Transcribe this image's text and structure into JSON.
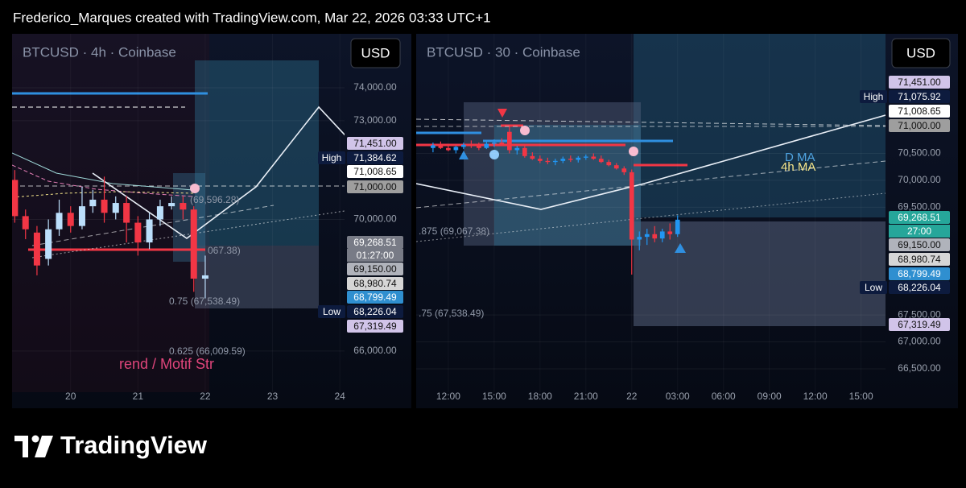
{
  "header": {
    "caption": "Frederico_Marques created with TradingView.com, Mar 22, 2026 03:33 UTC+1"
  },
  "chart_data": [
    {
      "type": "candlestick",
      "title": "BTCUSD · 4h · Coinbase",
      "currency": "USD",
      "up_color": "#bbdefb",
      "down_color": "#f23645",
      "x": [
        19.17,
        19.33,
        19.5,
        19.67,
        19.83,
        20,
        20.17,
        20.33,
        20.5,
        20.67,
        20.83,
        21,
        21.17,
        21.33,
        21.5,
        21.67,
        21.83,
        22
      ],
      "open": [
        71200,
        70100,
        69600,
        68800,
        69700,
        70200,
        69800,
        70400,
        70600,
        70200,
        70500,
        69900,
        69300,
        70000,
        70400,
        70500,
        70300,
        68200
      ],
      "high": [
        71500,
        70300,
        69800,
        70000,
        70600,
        70400,
        71000,
        70900,
        71300,
        70700,
        70700,
        70100,
        70200,
        70600,
        70700,
        70700,
        70400,
        68900
      ],
      "low": [
        69900,
        69400,
        68300,
        68600,
        69500,
        69600,
        69700,
        70200,
        69900,
        70000,
        69300,
        68900,
        69100,
        69800,
        70300,
        70000,
        67800,
        67600
      ],
      "close": [
        70100,
        69700,
        68600,
        69700,
        70200,
        69800,
        70400,
        70600,
        70200,
        70500,
        69900,
        69300,
        70000,
        70400,
        70500,
        70300,
        68200,
        68300
      ],
      "xlim": [
        19.13,
        24.07
      ],
      "xticks": [
        20,
        21,
        22,
        23,
        24
      ],
      "ylim": [
        64750,
        75640
      ],
      "yticks": [
        {
          "value": 66000,
          "label": "66,000.00"
        },
        {
          "value": 70000,
          "label": "70,000.00"
        },
        {
          "value": 73000,
          "label": "73,000.00"
        },
        {
          "value": 74000,
          "label": "74,000.00"
        }
      ],
      "price_labels": [
        {
          "text": "71,451.00",
          "color": "#d1c4e9"
        },
        {
          "text": "71,384.62",
          "color": "#0d1b3e",
          "tag": "High"
        },
        {
          "text": "71,008.65",
          "color": "#ffffff"
        },
        {
          "text": "71,000.00",
          "color": "#9e9e9e"
        },
        {
          "text": "69,268.51",
          "color": "#787b86",
          "countdown": "01:27:00"
        },
        {
          "text": "69,150.00",
          "color": "#b0b3bb"
        },
        {
          "text": "68,980.74",
          "color": "#d6d6d6"
        },
        {
          "text": "68,799.49",
          "color": "#2f8fd0"
        },
        {
          "text": "68,226.04",
          "color": "#0d1b3e",
          "tag": "Low"
        },
        {
          "text": "67,319.49",
          "color": "#d1c4e9"
        }
      ],
      "annotations": [
        "0.75 (67,538.49)",
        "0.625 (66,009.59)",
        "rend / Motif Str",
        "(69,596.28)",
        "067.38)"
      ]
    },
    {
      "type": "candlestick",
      "title": "BTCUSD · 30 · Coinbase",
      "currency": "USD",
      "up_color": "#2196f3",
      "down_color": "#f23645",
      "x": [
        11,
        11.5,
        12,
        12.5,
        13,
        13.5,
        14,
        14.5,
        15,
        15.5,
        16,
        16.5,
        17,
        17.5,
        18,
        18.5,
        19,
        19.5,
        20,
        20.5,
        21,
        21.5,
        22,
        22.5,
        23,
        23.5,
        24,
        24.5,
        25,
        25.5,
        26,
        26.5,
        27
      ],
      "open": [
        70600,
        70650,
        70600,
        70560,
        70620,
        70660,
        70640,
        70600,
        70680,
        70700,
        70900,
        70560,
        70600,
        70450,
        70400,
        70360,
        70340,
        70360,
        70400,
        70380,
        70420,
        70440,
        70400,
        70340,
        70280,
        70220,
        70150,
        68900,
        68950,
        69000,
        68920,
        69050,
        69000
      ],
      "high": [
        70700,
        70720,
        70680,
        70640,
        70700,
        70740,
        70700,
        70720,
        70760,
        70780,
        71000,
        70640,
        70660,
        70520,
        70460,
        70420,
        70400,
        70440,
        70460,
        70450,
        70480,
        70500,
        70460,
        70380,
        70320,
        70260,
        70200,
        69050,
        69100,
        69150,
        69100,
        69200,
        69350
      ],
      "low": [
        70520,
        70580,
        70540,
        70500,
        70580,
        70600,
        70560,
        70580,
        70620,
        70640,
        70500,
        70480,
        70420,
        70380,
        70320,
        70300,
        70280,
        70320,
        70340,
        70330,
        70380,
        70380,
        70320,
        70260,
        70200,
        70100,
        68250,
        68700,
        68800,
        68850,
        68850,
        68900,
        68950
      ],
      "close": [
        70650,
        70600,
        70560,
        70620,
        70660,
        70640,
        70600,
        70680,
        70700,
        70660,
        70560,
        70600,
        70450,
        70400,
        70360,
        70340,
        70360,
        70400,
        70380,
        70420,
        70440,
        70400,
        70340,
        70280,
        70220,
        70150,
        68900,
        68950,
        69000,
        68920,
        69050,
        69000,
        69268.51
      ],
      "xlim": [
        9.9,
        40.6
      ],
      "xticks": [
        {
          "value": 12,
          "label": "12:00"
        },
        {
          "value": 15,
          "label": "15:00"
        },
        {
          "value": 18,
          "label": "18:00"
        },
        {
          "value": 21,
          "label": "21:00"
        },
        {
          "value": 24,
          "label": "22"
        },
        {
          "value": 27,
          "label": "03:00"
        },
        {
          "value": 30,
          "label": "06:00"
        },
        {
          "value": 33,
          "label": "09:00"
        },
        {
          "value": 36,
          "label": "12:00"
        },
        {
          "value": 39,
          "label": "15:00"
        }
      ],
      "ylim": [
        66066,
        72720
      ],
      "yticks": [
        {
          "value": 66500,
          "label": "66,500.00"
        },
        {
          "value": 67000,
          "label": "67,000.00"
        },
        {
          "value": 67500,
          "label": "67,500.00"
        },
        {
          "value": 69500,
          "label": "69,500.00"
        },
        {
          "value": 70000,
          "label": "70,000.00"
        },
        {
          "value": 70500,
          "label": "70,500.00"
        }
      ],
      "price_labels": [
        {
          "text": "71,451.00",
          "color": "#d1c4e9"
        },
        {
          "text": "71,075.92",
          "color": "#0d1b3e",
          "tag": "High"
        },
        {
          "text": "71,008.65",
          "color": "#ffffff"
        },
        {
          "text": "71,000.00",
          "color": "#9e9e9e"
        },
        {
          "text": "69,268.51",
          "color": "#26a69a",
          "countdown": "27:00"
        },
        {
          "text": "69,150.00",
          "color": "#b0b3bb"
        },
        {
          "text": "68,980.74",
          "color": "#d6d6d6"
        },
        {
          "text": "68,799.49",
          "color": "#2f8fd0"
        },
        {
          "text": "68,226.04",
          "color": "#0d1b3e",
          "tag": "Low"
        },
        {
          "text": "67,319.49",
          "color": "#d1c4e9"
        }
      ],
      "annotations": [
        ".875 (69,067.38)",
        ".75 (67,538.49)",
        "D MA",
        "4h MA"
      ]
    }
  ],
  "footer": {
    "logo_text": "TradingView"
  }
}
